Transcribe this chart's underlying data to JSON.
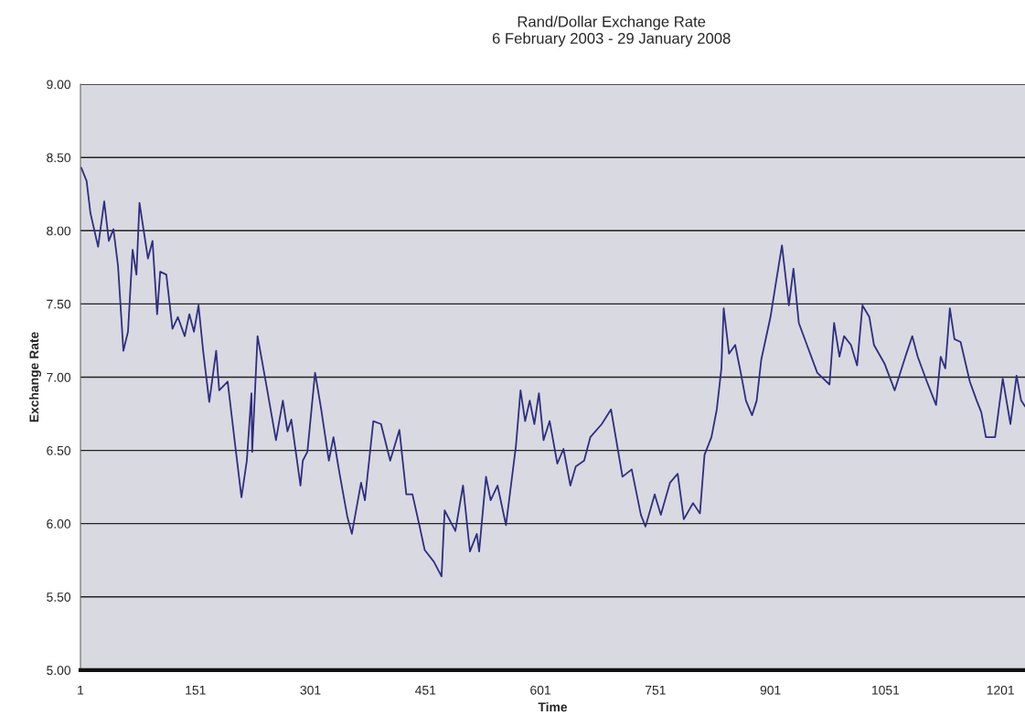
{
  "chart_data": {
    "type": "line",
    "title": "Rand/Dollar Exchange Rate",
    "subtitle": "6 February 2003 - 29 January 2008",
    "xlabel": "Time",
    "ylabel": "Exchange Rate",
    "color": "#2e2e80",
    "grid": "y",
    "marker": "none",
    "line_style": "solid",
    "x": [
      2,
      9,
      14,
      24,
      32,
      38,
      44,
      50,
      57,
      63,
      69,
      74,
      78,
      89,
      95,
      101,
      105,
      113,
      121,
      128,
      137,
      143,
      149,
      155,
      161,
      169,
      178,
      182,
      193,
      202,
      211,
      218,
      224,
      225,
      232,
      244,
      256,
      265,
      271,
      276,
      288,
      291,
      297,
      307,
      315,
      325,
      331,
      339,
      349,
      355,
      367,
      372,
      383,
      393,
      405,
      417,
      426,
      434,
      443,
      450,
      462,
      472,
      476,
      490,
      500,
      509,
      518,
      521,
      530,
      536,
      545,
      556,
      569,
      575,
      581,
      587,
      593,
      599,
      605,
      613,
      623,
      631,
      640,
      647,
      658,
      666,
      681,
      693,
      708,
      720,
      732,
      738,
      750,
      758,
      770,
      780,
      788,
      800,
      809,
      815,
      824,
      831,
      837,
      840,
      847,
      855,
      863,
      869,
      877,
      883,
      889,
      901,
      908,
      916,
      925,
      931,
      938,
      950,
      962,
      978,
      984,
      991,
      997,
      1006,
      1014,
      1021,
      1030,
      1036,
      1050,
      1063,
      1077,
      1086,
      1093,
      1105,
      1117,
      1123,
      1129,
      1135,
      1141,
      1149,
      1161,
      1170,
      1176,
      1182,
      1194,
      1204,
      1214,
      1222,
      1228,
      1233
    ],
    "values": [
      8.43,
      8.34,
      8.12,
      7.89,
      8.2,
      7.93,
      8.01,
      7.76,
      7.18,
      7.31,
      7.87,
      7.7,
      8.19,
      7.81,
      7.93,
      7.43,
      7.72,
      7.7,
      7.33,
      7.41,
      7.28,
      7.43,
      7.31,
      7.49,
      7.18,
      6.83,
      7.18,
      6.91,
      6.97,
      6.57,
      6.18,
      6.43,
      6.89,
      6.49,
      7.28,
      6.93,
      6.57,
      6.84,
      6.63,
      6.71,
      6.26,
      6.43,
      6.49,
      7.03,
      6.78,
      6.43,
      6.59,
      6.34,
      6.05,
      5.93,
      6.28,
      6.16,
      6.7,
      6.68,
      6.43,
      6.64,
      6.2,
      6.2,
      5.99,
      5.82,
      5.74,
      5.64,
      6.09,
      5.95,
      6.26,
      5.81,
      5.93,
      5.81,
      6.32,
      6.16,
      6.26,
      5.99,
      6.53,
      6.91,
      6.7,
      6.84,
      6.68,
      6.89,
      6.57,
      6.7,
      6.41,
      6.51,
      6.26,
      6.39,
      6.43,
      6.59,
      6.68,
      6.78,
      6.32,
      6.37,
      6.06,
      5.98,
      6.2,
      6.06,
      6.28,
      6.34,
      6.03,
      6.14,
      6.07,
      6.47,
      6.59,
      6.78,
      7.06,
      7.47,
      7.16,
      7.22,
      7.01,
      6.84,
      6.74,
      6.84,
      7.12,
      7.41,
      7.64,
      7.9,
      7.49,
      7.74,
      7.37,
      7.2,
      7.03,
      6.95,
      7.37,
      7.14,
      7.28,
      7.22,
      7.08,
      7.49,
      7.41,
      7.22,
      7.09,
      6.91,
      7.14,
      7.28,
      7.14,
      6.97,
      6.81,
      7.14,
      7.06,
      7.47,
      7.26,
      7.24,
      6.97,
      6.84,
      6.76,
      6.59,
      6.59,
      6.99,
      6.68,
      7.01,
      6.84,
      6.8
    ],
    "xlim": [
      1,
      1233
    ],
    "xticks": [
      1,
      151,
      301,
      451,
      601,
      751,
      901,
      1051,
      1201
    ],
    "ylim": [
      5,
      9
    ],
    "yticks": [
      {
        "value": 5,
        "label": "5.00"
      },
      {
        "value": 5.5,
        "label": "5.50"
      },
      {
        "value": 6,
        "label": "6.00"
      },
      {
        "value": 6.5,
        "label": "6.50"
      },
      {
        "value": 7,
        "label": "7.00"
      },
      {
        "value": 7.5,
        "label": "7.50"
      },
      {
        "value": 8,
        "label": "8.00"
      },
      {
        "value": 8.5,
        "label": "8.50"
      },
      {
        "value": 9,
        "label": "9.00"
      }
    ]
  }
}
